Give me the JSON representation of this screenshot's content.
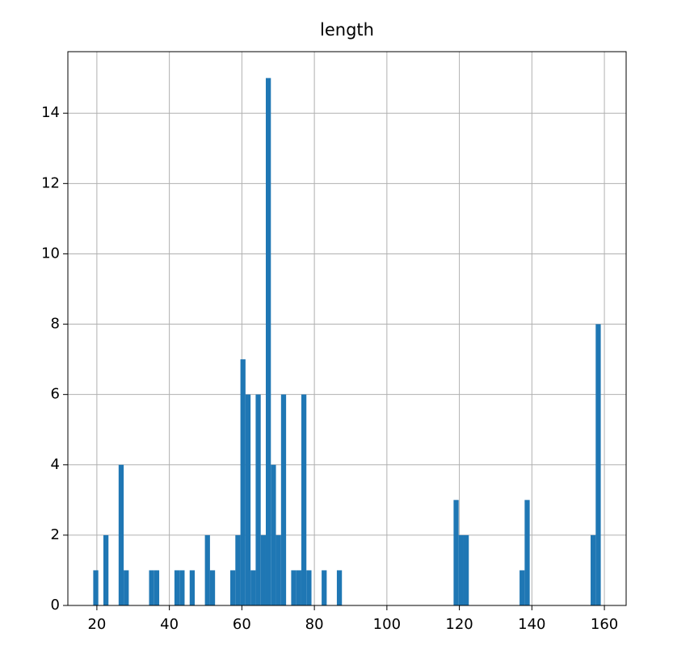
{
  "chart_data": {
    "type": "histogram",
    "title": "length",
    "bins": [
      19,
      20.4,
      21.8,
      23.2,
      24.6,
      26,
      27.4,
      28.8,
      30.2,
      31.6,
      33,
      34.4,
      35.8,
      37.2,
      38.6,
      40,
      41.4,
      42.8,
      44.2,
      45.6,
      47,
      48.4,
      49.8,
      51.2,
      52.6,
      54,
      55.4,
      56.8,
      58.2,
      59.6,
      61,
      62.4,
      63.8,
      65.2,
      66.6,
      68,
      69.4,
      70.8,
      72.2,
      73.6,
      75,
      76.4,
      77.8,
      79.2,
      80.6,
      82,
      83.4,
      84.8,
      86.2,
      87.6,
      89,
      90.4,
      91.8,
      93.2,
      94.6,
      96,
      97.4,
      98.8,
      100.2,
      101.6,
      103,
      104.4,
      105.8,
      107.2,
      108.6,
      110,
      111.4,
      112.8,
      114.2,
      115.6,
      117,
      118.4,
      119.8,
      121.2,
      122.6,
      124,
      125.4,
      126.8,
      128.2,
      129.6,
      131,
      132.4,
      133.8,
      135.2,
      136.6,
      138,
      139.4,
      140.8,
      142.2,
      143.6,
      145,
      146.4,
      147.8,
      149.2,
      150.6,
      152,
      153.4,
      154.8,
      156.2,
      157.6,
      159
    ],
    "values": [
      1,
      0,
      2,
      0,
      0,
      4,
      1,
      0,
      0,
      0,
      0,
      1,
      1,
      0,
      0,
      0,
      1,
      1,
      0,
      1,
      0,
      0,
      2,
      1,
      0,
      0,
      0,
      1,
      2,
      7,
      6,
      1,
      6,
      2,
      15,
      4,
      2,
      6,
      0,
      1,
      1,
      6,
      1,
      0,
      0,
      1,
      0,
      0,
      1,
      0,
      0,
      0,
      0,
      0,
      0,
      0,
      0,
      0,
      0,
      0,
      0,
      0,
      0,
      0,
      0,
      0,
      0,
      0,
      0,
      0,
      0,
      3,
      2,
      2,
      0,
      0,
      0,
      0,
      0,
      0,
      0,
      0,
      0,
      0,
      1,
      3,
      0,
      0,
      0,
      0,
      0,
      0,
      0,
      0,
      0,
      0,
      0,
      0,
      2,
      8
    ],
    "color": "#1f77b4",
    "xlim": [
      12,
      166
    ],
    "xticks": [
      20,
      40,
      60,
      80,
      100,
      120,
      140,
      160
    ],
    "ylim": [
      0,
      15.75
    ],
    "yticks": [
      0,
      2,
      4,
      6,
      8,
      10,
      12,
      14
    ],
    "grid": true
  }
}
